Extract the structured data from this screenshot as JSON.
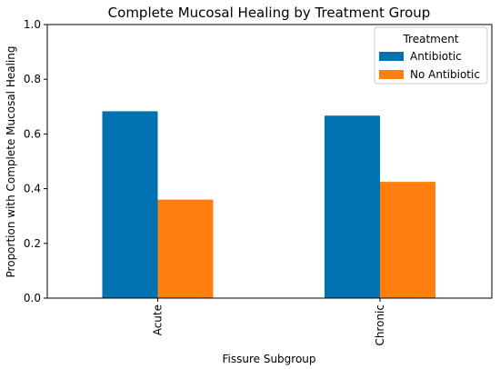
{
  "chart_data": {
    "type": "bar",
    "title": "Complete Mucosal Healing by Treatment Group",
    "xlabel": "Fissure Subgroup",
    "ylabel": "Proportion with Complete Mucosal Healing",
    "categories": [
      "Acute",
      "Chronic"
    ],
    "series": [
      {
        "name": "Antibiotic",
        "values": [
          0.683,
          0.667
        ],
        "color": "#0072B2"
      },
      {
        "name": "No Antibiotic",
        "values": [
          0.36,
          0.425
        ],
        "color": "#FF7F0E"
      }
    ],
    "ylim": [
      0.0,
      1.0
    ],
    "yticks": [
      0.0,
      0.2,
      0.4,
      0.6,
      0.8,
      1.0
    ],
    "ytick_labels": [
      "0.0",
      "0.2",
      "0.4",
      "0.6",
      "0.8",
      "1.0"
    ],
    "legend": {
      "title": "Treatment",
      "position": "top-right"
    },
    "grid": false
  }
}
